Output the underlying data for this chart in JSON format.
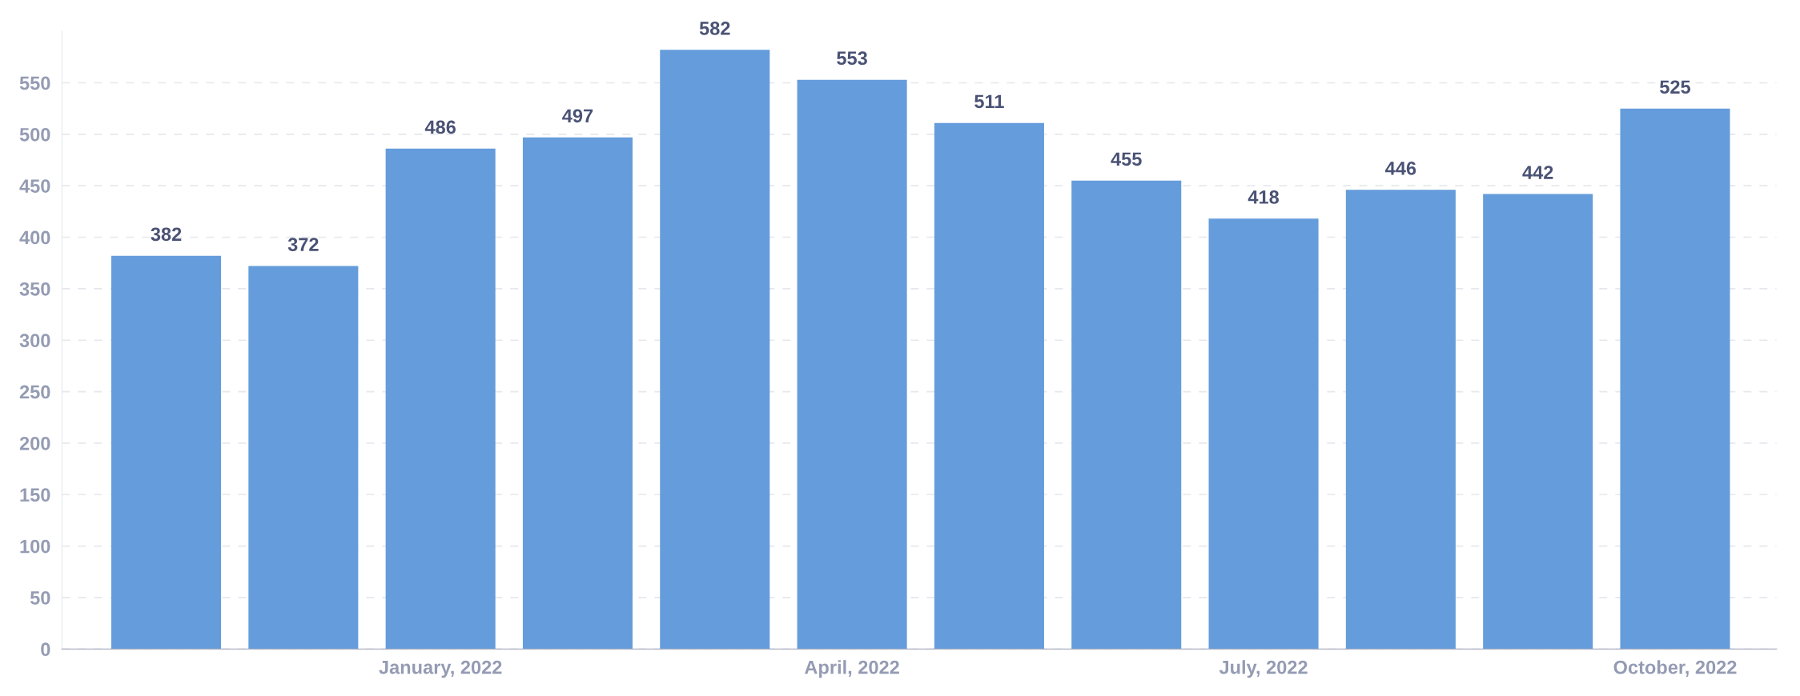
{
  "chart_data": {
    "type": "bar",
    "categories": [
      null,
      null,
      "January, 2022",
      null,
      null,
      "April, 2022",
      null,
      null,
      "July, 2022",
      null,
      null,
      "October, 2022"
    ],
    "values": [
      382,
      372,
      486,
      497,
      582,
      553,
      511,
      455,
      418,
      446,
      442,
      525
    ],
    "color": "#659cdc",
    "ylim": [
      0,
      600
    ],
    "yticks": [
      0,
      50,
      100,
      150,
      200,
      250,
      300,
      350,
      400,
      450,
      500,
      550
    ],
    "grid": "y",
    "data_labels": true
  }
}
